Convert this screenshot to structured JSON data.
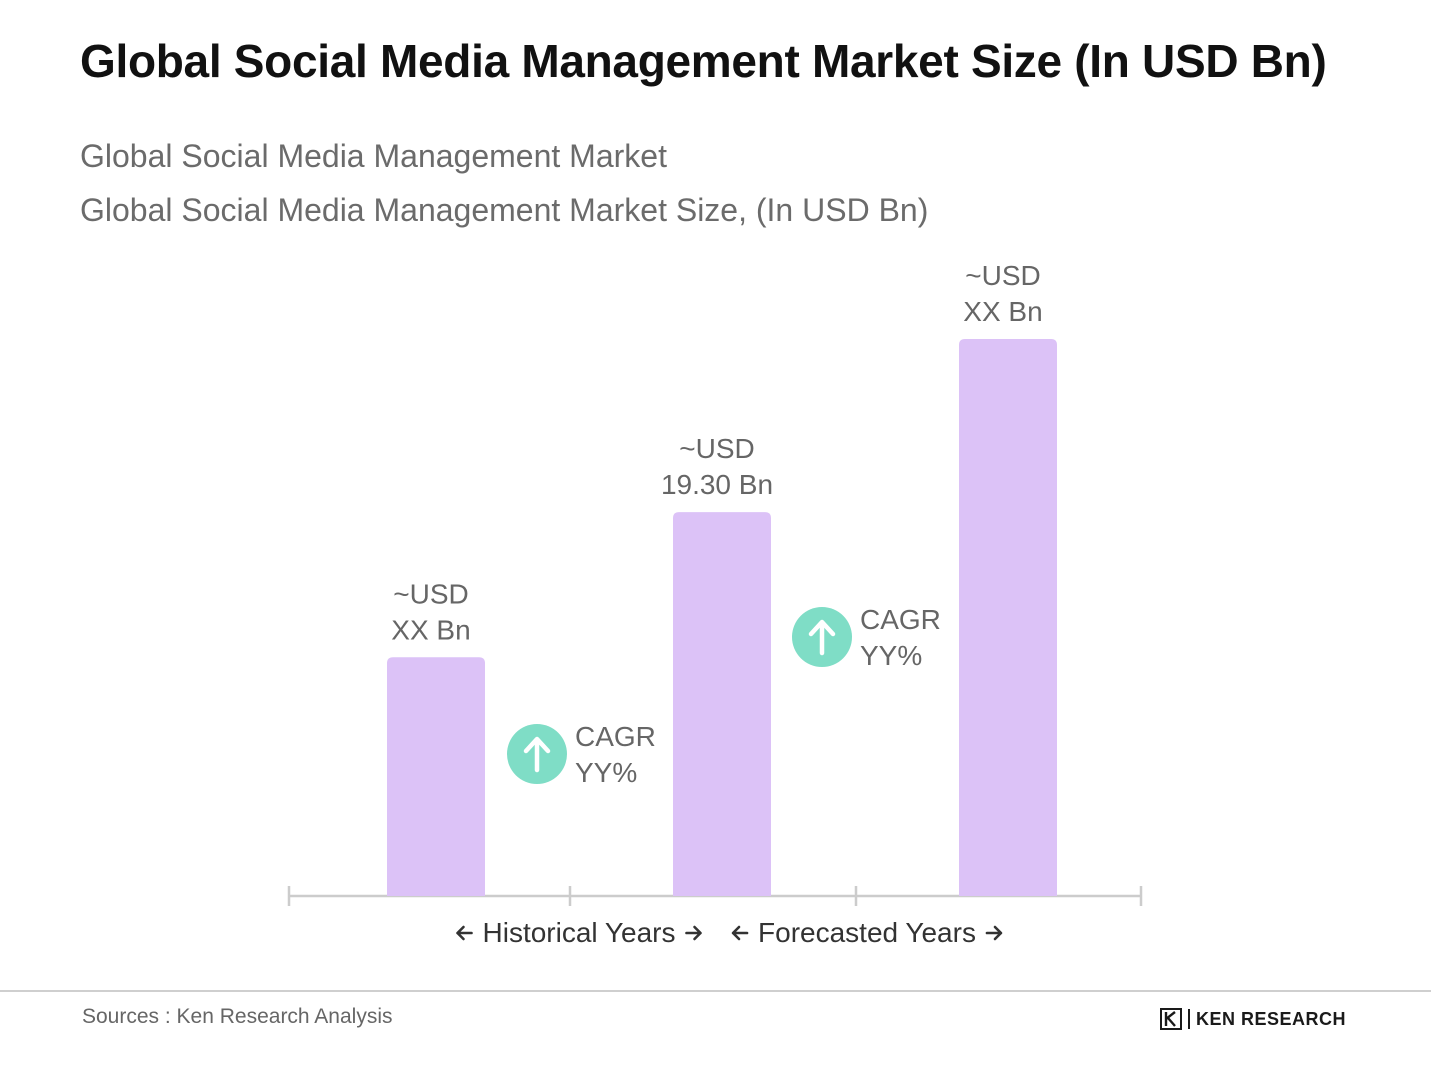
{
  "header": {
    "title": "Global Social Media Management Market Size (In USD Bn)",
    "subtitle_1": "Global Social Media Management Market",
    "subtitle_2": "Global Social Media Management Market Size, (In USD Bn)"
  },
  "chart_data": {
    "type": "bar",
    "categories": [
      "",
      "",
      ""
    ],
    "series": [
      {
        "values": [
          12.0,
          19.3,
          28.0
        ]
      }
    ],
    "bar_labels": [
      [
        "~USD",
        "XX Bn"
      ],
      [
        "~USD",
        "19.30 Bn"
      ],
      [
        "~USD",
        "XX Bn"
      ]
    ],
    "ylim": [
      0,
      32
    ],
    "grid": false,
    "bar_color": "#dcc2f7",
    "axis_color": "#cccccc",
    "cagr_badges": [
      {
        "between": [
          0,
          1
        ],
        "lines": [
          "CAGR",
          "YY%"
        ],
        "icon": "arrow-up-circle-icon",
        "color": "#7fddc6"
      },
      {
        "between": [
          1,
          2
        ],
        "lines": [
          "CAGR",
          "YY%"
        ],
        "icon": "arrow-up-circle-icon",
        "color": "#7fddc6"
      }
    ],
    "periods": [
      {
        "label": "Historical Years",
        "arrows": [
          "arrow-left-icon",
          "arrow-right-icon"
        ]
      },
      {
        "label": "Forecasted Years",
        "arrows": [
          "arrow-left-icon",
          "arrow-right-icon"
        ]
      }
    ]
  },
  "footer": {
    "source": "Sources : Ken Research Analysis",
    "brand": "KEN RESEARCH",
    "brand_icon": "ken-research-logo-icon"
  }
}
